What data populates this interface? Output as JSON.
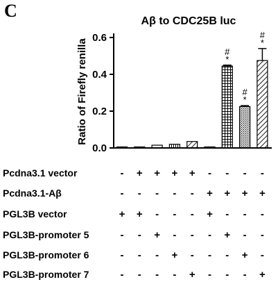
{
  "panel_label": "C",
  "chart_data": {
    "type": "bar",
    "title": "Aβ to CDC25B luc",
    "ylabel": "Ratio of Firefly renilla",
    "xlabel": "",
    "ylim": [
      0,
      0.6
    ],
    "yticks": [
      0.0,
      0.2,
      0.4,
      0.6
    ],
    "ytick_labels": [
      "0.0",
      "0.2",
      "0.4",
      "0.6"
    ],
    "grid": false,
    "legend": "none",
    "bars": [
      {
        "value": 0.005,
        "error": 0.0,
        "pattern": "white",
        "annotation": []
      },
      {
        "value": 0.005,
        "error": 0.0,
        "pattern": "white",
        "annotation": []
      },
      {
        "value": 0.015,
        "error": 0.0,
        "pattern": "white",
        "annotation": []
      },
      {
        "value": 0.02,
        "error": 0.0,
        "pattern": "vertical-lines",
        "annotation": []
      },
      {
        "value": 0.035,
        "error": 0.0,
        "pattern": "diagonal-lines",
        "annotation": []
      },
      {
        "value": 0.005,
        "error": 0.0,
        "pattern": "white",
        "annotation": []
      },
      {
        "value": 0.445,
        "error": 0.005,
        "pattern": "grid",
        "annotation": [
          "#",
          "*"
        ]
      },
      {
        "value": 0.225,
        "error": 0.005,
        "pattern": "dots",
        "annotation": [
          "#",
          "*"
        ]
      },
      {
        "value": 0.475,
        "error": 0.065,
        "pattern": "diagonal-lines",
        "annotation": [
          "#",
          "*"
        ]
      }
    ],
    "conditions": [
      {
        "label": "Pcdna3.1 vector",
        "values": [
          "-",
          "+",
          "+",
          "+",
          "+",
          "-",
          "-",
          "-",
          "-"
        ]
      },
      {
        "label": "Pcdna3.1-Aβ",
        "values": [
          "-",
          "-",
          "-",
          "-",
          "-",
          "+",
          "+",
          "+",
          "+"
        ]
      },
      {
        "label": "PGL3B vector",
        "values": [
          "+",
          "+",
          "-",
          "-",
          "-",
          "+",
          "-",
          "-",
          "-"
        ]
      },
      {
        "label": "PGL3B-promoter 5",
        "values": [
          "-",
          "-",
          "+",
          "-",
          "-",
          "-",
          "+",
          "-",
          "-"
        ]
      },
      {
        "label": "PGL3B-promoter 6",
        "values": [
          "-",
          "-",
          "-",
          "+",
          "-",
          "-",
          "-",
          "+",
          "-"
        ]
      },
      {
        "label": "PGL3B-promoter 7",
        "values": [
          "-",
          "-",
          "-",
          "-",
          "+",
          "-",
          "-",
          "-",
          "+"
        ]
      }
    ]
  }
}
